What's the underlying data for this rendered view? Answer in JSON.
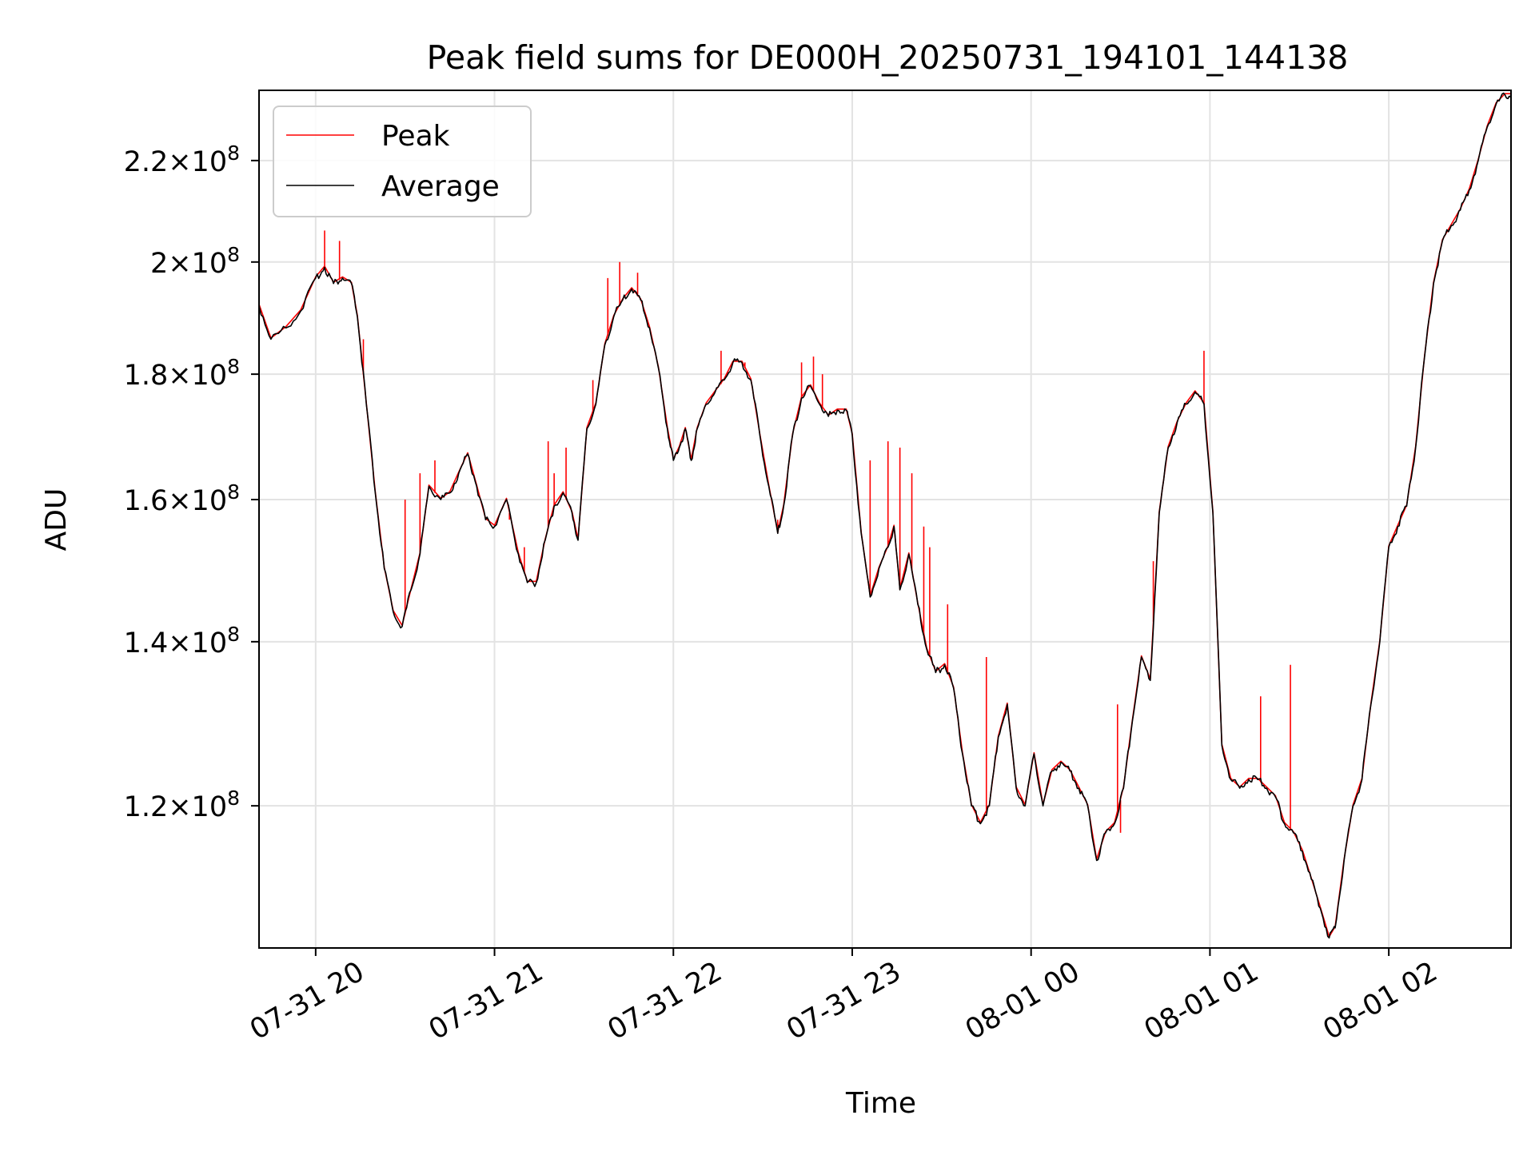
{
  "chart_data": {
    "type": "line",
    "title": "Peak field sums for DE000H_20250731_194101_144138",
    "xlabel": "Time",
    "ylabel": "ADU",
    "y_scale": "log",
    "grid": true,
    "legend_position": "top-left",
    "xlim": [
      "2025-07-31 19:41",
      "2025-08-01 02:41"
    ],
    "ylim": [
      105000000,
      235000000
    ],
    "x_ticks": [
      {
        "value": "2025-07-31 20:00",
        "label": "07-31 20"
      },
      {
        "value": "2025-07-31 21:00",
        "label": "07-31 21"
      },
      {
        "value": "2025-07-31 22:00",
        "label": "07-31 22"
      },
      {
        "value": "2025-07-31 23:00",
        "label": "07-31 23"
      },
      {
        "value": "2025-08-01 00:00",
        "label": "08-01 00"
      },
      {
        "value": "2025-08-01 01:00",
        "label": "08-01 01"
      },
      {
        "value": "2025-08-01 02:00",
        "label": "08-01 02"
      }
    ],
    "y_ticks": [
      {
        "value": 120000000,
        "mantissa": "1.2",
        "exp": "8"
      },
      {
        "value": 140000000,
        "mantissa": "1.4",
        "exp": "8"
      },
      {
        "value": 160000000,
        "mantissa": "1.6",
        "exp": "8"
      },
      {
        "value": 180000000,
        "mantissa": "1.8",
        "exp": "8"
      },
      {
        "value": 200000000,
        "mantissa": "2",
        "exp": "8"
      },
      {
        "value": 220000000,
        "mantissa": "2.2",
        "exp": "8"
      }
    ],
    "series": [
      {
        "name": "Average",
        "color": "#000000",
        "points": [
          [
            "2025-07-31 19:41",
            192
          ],
          [
            "2025-07-31 19:45",
            186
          ],
          [
            "2025-07-31 19:50",
            188
          ],
          [
            "2025-07-31 19:55",
            191
          ],
          [
            "2025-07-31 20:00",
            197
          ],
          [
            "2025-07-31 20:03",
            199
          ],
          [
            "2025-07-31 20:06",
            196
          ],
          [
            "2025-07-31 20:09",
            197
          ],
          [
            "2025-07-31 20:12",
            196
          ],
          [
            "2025-07-31 20:14",
            190
          ],
          [
            "2025-07-31 20:17",
            175
          ],
          [
            "2025-07-31 20:20",
            161
          ],
          [
            "2025-07-31 20:23",
            150
          ],
          [
            "2025-07-31 20:26",
            144
          ],
          [
            "2025-07-31 20:29",
            142
          ],
          [
            "2025-07-31 20:32",
            147
          ],
          [
            "2025-07-31 20:35",
            152
          ],
          [
            "2025-07-31 20:38",
            162
          ],
          [
            "2025-07-31 20:42",
            160
          ],
          [
            "2025-07-31 20:45",
            161
          ],
          [
            "2025-07-31 20:48",
            164
          ],
          [
            "2025-07-31 20:51",
            167
          ],
          [
            "2025-07-31 20:54",
            162
          ],
          [
            "2025-07-31 20:57",
            157
          ],
          [
            "2025-07-31 21:00",
            156
          ],
          [
            "2025-07-31 21:04",
            160
          ],
          [
            "2025-07-31 21:08",
            152
          ],
          [
            "2025-07-31 21:11",
            148
          ],
          [
            "2025-07-31 21:14",
            148
          ],
          [
            "2025-07-31 21:17",
            154
          ],
          [
            "2025-07-31 21:20",
            159
          ],
          [
            "2025-07-31 21:23",
            161
          ],
          [
            "2025-07-31 21:26",
            158
          ],
          [
            "2025-07-31 21:28",
            154
          ],
          [
            "2025-07-31 21:31",
            171
          ],
          [
            "2025-07-31 21:34",
            175
          ],
          [
            "2025-07-31 21:37",
            185
          ],
          [
            "2025-07-31 21:40",
            190
          ],
          [
            "2025-07-31 21:43",
            193
          ],
          [
            "2025-07-31 21:46",
            195
          ],
          [
            "2025-07-31 21:49",
            193
          ],
          [
            "2025-07-31 21:52",
            188
          ],
          [
            "2025-07-31 21:55",
            181
          ],
          [
            "2025-07-31 21:58",
            171
          ],
          [
            "2025-07-31 22:00",
            166
          ],
          [
            "2025-07-31 22:02",
            168
          ],
          [
            "2025-07-31 22:04",
            171
          ],
          [
            "2025-07-31 22:06",
            166
          ],
          [
            "2025-07-31 22:08",
            171
          ],
          [
            "2025-07-31 22:11",
            175
          ],
          [
            "2025-07-31 22:14",
            177
          ],
          [
            "2025-07-31 22:17",
            179
          ],
          [
            "2025-07-31 22:20",
            182
          ],
          [
            "2025-07-31 22:23",
            182
          ],
          [
            "2025-07-31 22:26",
            179
          ],
          [
            "2025-07-31 22:29",
            170
          ],
          [
            "2025-07-31 22:32",
            162
          ],
          [
            "2025-07-31 22:35",
            155
          ],
          [
            "2025-07-31 22:37",
            159
          ],
          [
            "2025-07-31 22:40",
            170
          ],
          [
            "2025-07-31 22:43",
            176
          ],
          [
            "2025-07-31 22:46",
            178
          ],
          [
            "2025-07-31 22:49",
            175
          ],
          [
            "2025-07-31 22:52",
            173
          ],
          [
            "2025-07-31 22:55",
            174
          ],
          [
            "2025-07-31 22:58",
            174
          ],
          [
            "2025-07-31 23:00",
            170
          ],
          [
            "2025-07-31 23:03",
            155
          ],
          [
            "2025-07-31 23:06",
            146
          ],
          [
            "2025-07-31 23:09",
            150
          ],
          [
            "2025-07-31 23:12",
            153
          ],
          [
            "2025-07-31 23:14",
            156
          ],
          [
            "2025-07-31 23:16",
            147
          ],
          [
            "2025-07-31 23:19",
            152
          ],
          [
            "2025-07-31 23:22",
            145
          ],
          [
            "2025-07-31 23:25",
            139
          ],
          [
            "2025-07-31 23:28",
            136
          ],
          [
            "2025-07-31 23:31",
            137
          ],
          [
            "2025-07-31 23:34",
            134
          ],
          [
            "2025-07-31 23:37",
            126
          ],
          [
            "2025-07-31 23:40",
            120
          ],
          [
            "2025-07-31 23:43",
            118
          ],
          [
            "2025-07-31 23:46",
            120
          ],
          [
            "2025-07-31 23:49",
            128
          ],
          [
            "2025-07-31 23:52",
            132
          ],
          [
            "2025-07-31 23:55",
            122
          ],
          [
            "2025-07-31 23:58",
            120
          ],
          [
            "2025-08-01 00:01",
            126
          ],
          [
            "2025-08-01 00:04",
            120
          ],
          [
            "2025-08-01 00:07",
            124
          ],
          [
            "2025-08-01 00:10",
            125
          ],
          [
            "2025-08-01 00:13",
            124
          ],
          [
            "2025-08-01 00:16",
            122
          ],
          [
            "2025-08-01 00:19",
            120
          ],
          [
            "2025-08-01 00:22",
            114
          ],
          [
            "2025-08-01 00:25",
            117
          ],
          [
            "2025-08-01 00:28",
            118
          ],
          [
            "2025-08-01 00:31",
            122
          ],
          [
            "2025-08-01 00:34",
            130
          ],
          [
            "2025-08-01 00:37",
            138
          ],
          [
            "2025-08-01 00:40",
            135
          ],
          [
            "2025-08-01 00:43",
            158
          ],
          [
            "2025-08-01 00:46",
            168
          ],
          [
            "2025-08-01 00:49",
            172
          ],
          [
            "2025-08-01 00:52",
            175
          ],
          [
            "2025-08-01 00:55",
            177
          ],
          [
            "2025-08-01 00:58",
            175
          ],
          [
            "2025-08-01 01:01",
            158
          ],
          [
            "2025-08-01 01:04",
            127
          ],
          [
            "2025-08-01 01:07",
            123
          ],
          [
            "2025-08-01 01:10",
            122
          ],
          [
            "2025-08-01 01:13",
            123
          ],
          [
            "2025-08-01 01:16",
            123
          ],
          [
            "2025-08-01 01:19",
            122
          ],
          [
            "2025-08-01 01:22",
            121
          ],
          [
            "2025-08-01 01:25",
            118
          ],
          [
            "2025-08-01 01:28",
            117
          ],
          [
            "2025-08-01 01:31",
            115
          ],
          [
            "2025-08-01 01:34",
            112
          ],
          [
            "2025-08-01 01:37",
            109
          ],
          [
            "2025-08-01 01:40",
            106
          ],
          [
            "2025-08-01 01:42",
            107
          ],
          [
            "2025-08-01 01:45",
            114
          ],
          [
            "2025-08-01 01:48",
            120
          ],
          [
            "2025-08-01 01:51",
            123
          ],
          [
            "2025-08-01 01:54",
            132
          ],
          [
            "2025-08-01 01:57",
            140
          ],
          [
            "2025-08-01 02:00",
            153
          ],
          [
            "2025-08-01 02:03",
            156
          ],
          [
            "2025-08-01 02:06",
            159
          ],
          [
            "2025-08-01 02:09",
            168
          ],
          [
            "2025-08-01 02:12",
            183
          ],
          [
            "2025-08-01 02:15",
            196
          ],
          [
            "2025-08-01 02:18",
            204
          ],
          [
            "2025-08-01 02:21",
            207
          ],
          [
            "2025-08-01 02:24",
            210
          ],
          [
            "2025-08-01 02:27",
            214
          ],
          [
            "2025-08-01 02:30",
            220
          ],
          [
            "2025-08-01 02:33",
            227
          ],
          [
            "2025-08-01 02:36",
            232
          ],
          [
            "2025-08-01 02:39",
            234
          ],
          [
            "2025-08-01 02:41",
            234
          ]
        ]
      },
      {
        "name": "Peak",
        "color": "#ff0000",
        "spikes": [
          [
            "2025-07-31 20:03",
            206
          ],
          [
            "2025-07-31 20:08",
            204
          ],
          [
            "2025-07-31 20:16",
            186
          ],
          [
            "2025-07-31 20:30",
            160
          ],
          [
            "2025-07-31 20:35",
            164
          ],
          [
            "2025-07-31 20:40",
            166
          ],
          [
            "2025-07-31 21:05",
            157
          ],
          [
            "2025-07-31 21:10",
            153
          ],
          [
            "2025-07-31 21:18",
            169
          ],
          [
            "2025-07-31 21:20",
            164
          ],
          [
            "2025-07-31 21:24",
            168
          ],
          [
            "2025-07-31 21:33",
            179
          ],
          [
            "2025-07-31 21:38",
            197
          ],
          [
            "2025-07-31 21:42",
            200
          ],
          [
            "2025-07-31 21:48",
            198
          ],
          [
            "2025-07-31 22:16",
            184
          ],
          [
            "2025-07-31 22:24",
            182
          ],
          [
            "2025-07-31 22:35",
            157
          ],
          [
            "2025-07-31 22:43",
            182
          ],
          [
            "2025-07-31 22:47",
            183
          ],
          [
            "2025-07-31 22:50",
            180
          ],
          [
            "2025-07-31 23:06",
            166
          ],
          [
            "2025-07-31 23:12",
            169
          ],
          [
            "2025-07-31 23:16",
            168
          ],
          [
            "2025-07-31 23:20",
            164
          ],
          [
            "2025-07-31 23:24",
            156
          ],
          [
            "2025-07-31 23:26",
            153
          ],
          [
            "2025-07-31 23:32",
            145
          ],
          [
            "2025-07-31 23:45",
            138
          ],
          [
            "2025-08-01 00:29",
            132
          ],
          [
            "2025-08-01 00:30",
            117
          ],
          [
            "2025-08-01 00:41",
            151
          ],
          [
            "2025-08-01 00:58",
            184
          ],
          [
            "2025-08-01 01:17",
            133
          ],
          [
            "2025-08-01 01:27",
            137
          ]
        ]
      }
    ]
  }
}
